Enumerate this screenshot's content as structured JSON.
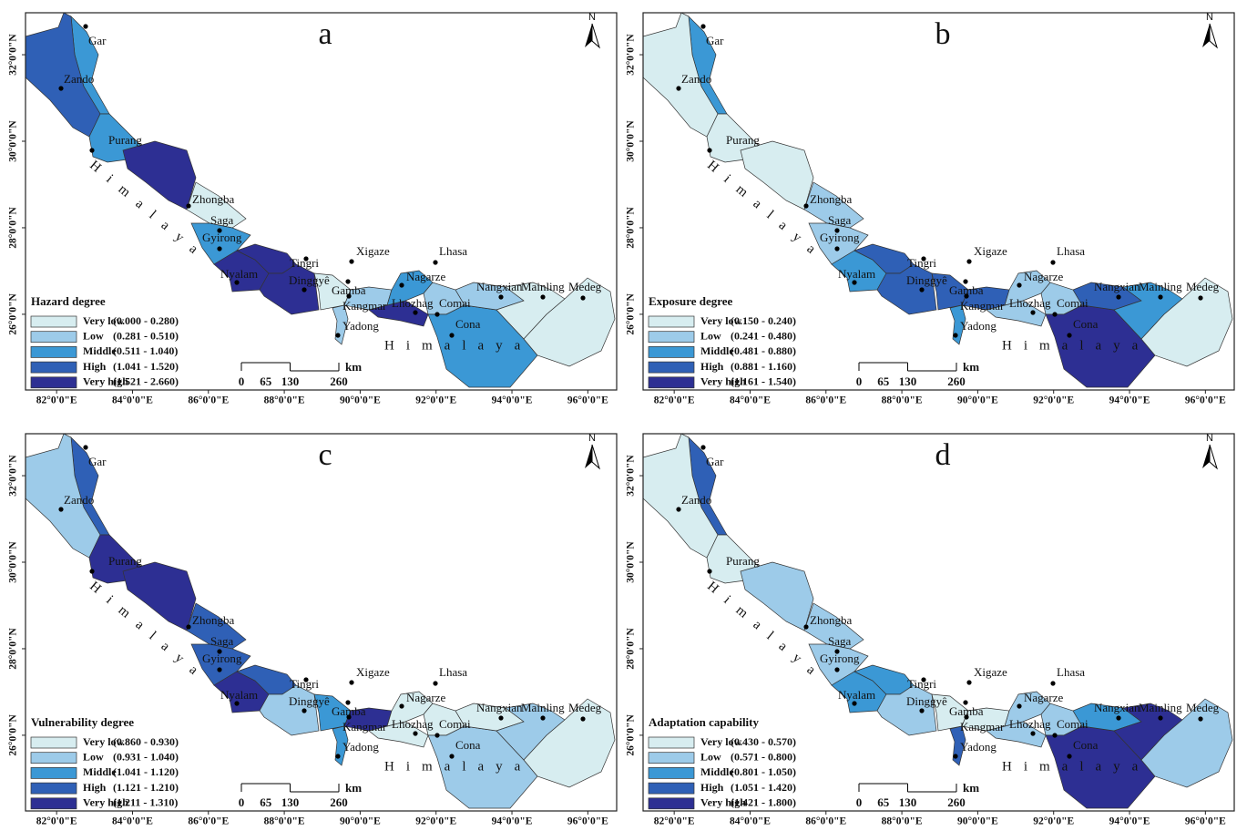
{
  "xlim": [
    81.18,
    96.76
  ],
  "ylim": [
    24.25,
    32.97
  ],
  "xticks": [
    {
      "value": 82,
      "label": "82°0'0\"E"
    },
    {
      "value": 84,
      "label": "84°0'0\"E"
    },
    {
      "value": 86,
      "label": "86°0'0\"E"
    },
    {
      "value": 88,
      "label": "88°0'0\"E"
    },
    {
      "value": 90,
      "label": "90°0'0\"E"
    },
    {
      "value": 92,
      "label": "92°0'0\"E"
    },
    {
      "value": 94,
      "label": "94°0'0\"E"
    },
    {
      "value": 96,
      "label": "96°0'0\"E"
    }
  ],
  "yticks": [
    {
      "value": 26,
      "label": "26°0'0\"N"
    },
    {
      "value": 28,
      "label": "28°0'0\"N"
    },
    {
      "value": 30,
      "label": "30°0'0\"N"
    },
    {
      "value": 32,
      "label": "32°0'0\"N"
    }
  ],
  "mountain_label": "Himalaya",
  "north": "N",
  "scale_bar": {
    "unit": "km",
    "ticks": [
      0,
      65,
      130,
      260
    ]
  },
  "places": [
    "Gar",
    "Zando",
    "Purang",
    "Zhongba",
    "Saga",
    "Gyirong",
    "Nyalam",
    "Tingri",
    "Dinggyê",
    "Gamba",
    "Kangmar",
    "Yadong",
    "Lhozhag",
    "Nagarze",
    "Comai",
    "Cona",
    "Nangxian",
    "Mainling",
    "Medeg",
    "Xigaze",
    "Lhasa"
  ],
  "legend_colors": [
    "#d7edf0",
    "#9dcbe9",
    "#3b98d5",
    "#2f60b6",
    "#2d2f93"
  ],
  "panels": [
    {
      "letter": "a",
      "legend_title": "Hazard degree",
      "classes": [
        {
          "label": "Very low",
          "range": "(0.000 - 0.280)"
        },
        {
          "label": "Low",
          "range": "(0.281 - 0.510)"
        },
        {
          "label": "Middle",
          "range": "(0.511 - 1.040)"
        },
        {
          "label": "High",
          "range": "(1.041 - 1.520)"
        },
        {
          "label": "Very high",
          "range": "(1.521 - 2.660)"
        }
      ],
      "county_classes": [
        2,
        3,
        2,
        4,
        0,
        2,
        4,
        4,
        4,
        0,
        1,
        1,
        4,
        2,
        1,
        2,
        1,
        0,
        0
      ]
    },
    {
      "letter": "b",
      "legend_title": "Exposure degree",
      "classes": [
        {
          "label": "Very low",
          "range": "(0.150 - 0.240)"
        },
        {
          "label": "Low",
          "range": "(0.241 - 0.480)"
        },
        {
          "label": "Middle",
          "range": "(0.481 - 0.880)"
        },
        {
          "label": "High",
          "range": "(0.881 - 1.160)"
        },
        {
          "label": "Very high",
          "range": "(1.161 - 1.540)"
        }
      ],
      "county_classes": [
        2,
        0,
        0,
        0,
        1,
        1,
        2,
        3,
        3,
        3,
        3,
        2,
        1,
        1,
        1,
        4,
        3,
        2,
        0
      ]
    },
    {
      "letter": "c",
      "legend_title": "Vulnerability degree",
      "classes": [
        {
          "label": "Very low",
          "range": "(0.860 - 0.930)"
        },
        {
          "label": "Low",
          "range": "(0.931 - 1.040)"
        },
        {
          "label": "Middle",
          "range": "(1.041 - 1.120)"
        },
        {
          "label": "High",
          "range": "(1.121 - 1.210)"
        },
        {
          "label": "Very high",
          "range": "(1.211 - 1.310)"
        }
      ],
      "county_classes": [
        3,
        1,
        4,
        4,
        3,
        3,
        4,
        3,
        1,
        2,
        4,
        2,
        0,
        0,
        0,
        1,
        0,
        1,
        0
      ]
    },
    {
      "letter": "d",
      "legend_title": "Adaptation capability",
      "classes": [
        {
          "label": "Very low",
          "range": "(0.430 - 0.570)"
        },
        {
          "label": "Low",
          "range": "(0.571 - 0.800)"
        },
        {
          "label": "Middle",
          "range": "(0.801 - 1.050)"
        },
        {
          "label": "High",
          "range": "(1.051 - 1.420)"
        },
        {
          "label": "Very high",
          "range": "(1.421 - 1.800)"
        }
      ],
      "county_classes": [
        3,
        0,
        0,
        1,
        1,
        1,
        2,
        2,
        1,
        0,
        0,
        3,
        1,
        1,
        1,
        4,
        2,
        4,
        1
      ]
    }
  ]
}
